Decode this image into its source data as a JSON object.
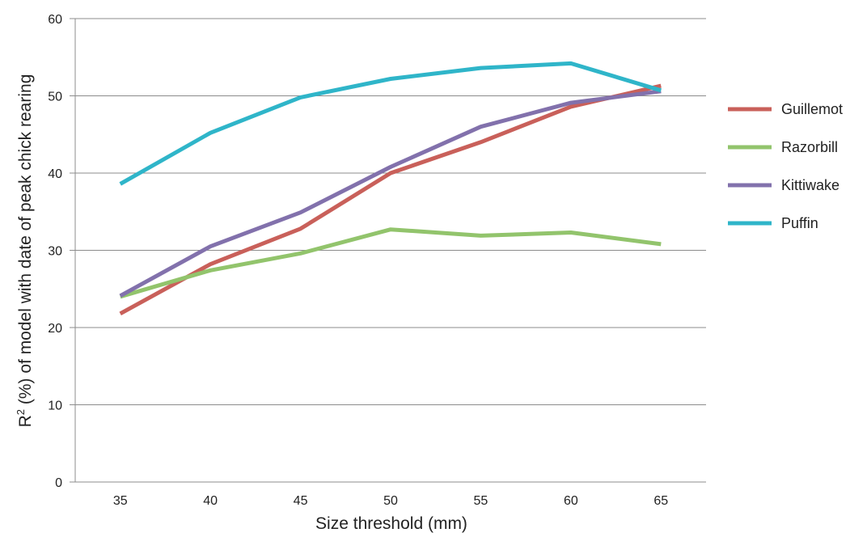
{
  "chart_data": {
    "type": "line",
    "title": "",
    "xlabel": "Size threshold (mm)",
    "ylabel_prefix": "R",
    "ylabel_superscript": "2",
    "ylabel_suffix": " (%) of model with date of peak chick rearing",
    "x": [
      35,
      40,
      45,
      50,
      55,
      60,
      65
    ],
    "x_tick_labels": [
      "35",
      "40",
      "45",
      "50",
      "55",
      "60",
      "65"
    ],
    "ylim": [
      0,
      60
    ],
    "y_ticks": [
      0,
      10,
      20,
      30,
      40,
      50,
      60
    ],
    "y_tick_labels": [
      "0",
      "10",
      "20",
      "30",
      "40",
      "50",
      "60"
    ],
    "grid": true,
    "legend_position": "right",
    "series": [
      {
        "name": "Guillemot",
        "color": "#c9605a",
        "values": [
          21.8,
          28.2,
          32.8,
          40.0,
          44.0,
          48.6,
          51.3
        ]
      },
      {
        "name": "Razorbill",
        "color": "#92c46c",
        "values": [
          24.0,
          27.4,
          29.6,
          32.7,
          31.9,
          32.3,
          30.8
        ]
      },
      {
        "name": "Kittiwake",
        "color": "#8271ac",
        "values": [
          24.1,
          30.5,
          34.9,
          40.8,
          46.0,
          49.1,
          50.6
        ]
      },
      {
        "name": "Puffin",
        "color": "#2fb5c9",
        "values": [
          38.6,
          45.2,
          49.8,
          52.2,
          53.6,
          54.2,
          50.7
        ]
      }
    ]
  }
}
